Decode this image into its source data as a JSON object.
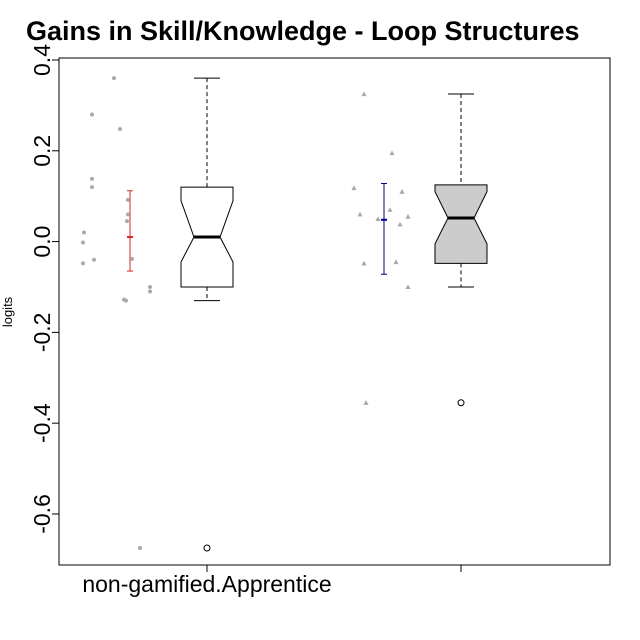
{
  "chart_data": {
    "type": "boxplot",
    "title": "Gains in Skill/Knowledge - Loop Structures",
    "ylabel": "logits",
    "xlabel": "",
    "ylim": [
      -0.72,
      0.4
    ],
    "yticks": [
      -0.6,
      -0.4,
      -0.2,
      0.0,
      0.2,
      0.4
    ],
    "ytick_labels": [
      "-0.6",
      "-0.4",
      "-0.2",
      "0.0",
      "0.2",
      "0.4"
    ],
    "categories": [
      "non-gamified.Apprentice",
      ""
    ],
    "grid": false,
    "legend": "none",
    "groups": [
      {
        "label": "non-gamified.Apprentice",
        "box_fill": "#ffffff",
        "notched": true,
        "box": {
          "q1": -0.1,
          "median": 0.01,
          "q3": 0.12,
          "notch_low": -0.045,
          "notch_high": 0.09,
          "whisker_low": -0.13,
          "whisker_high": 0.36
        },
        "outliers": [
          -0.675
        ],
        "mean_ci": {
          "mean": 0.01,
          "low": -0.065,
          "high": 0.112,
          "color": "#d62728"
        },
        "points_marker": "circle",
        "points": [
          {
            "x": -0.16,
            "y": 0.36
          },
          {
            "x": -0.38,
            "y": 0.28
          },
          {
            "x": -0.1,
            "y": 0.248
          },
          {
            "x": -0.38,
            "y": 0.138
          },
          {
            "x": -0.38,
            "y": 0.12
          },
          {
            "x": -0.02,
            "y": 0.092
          },
          {
            "x": -0.02,
            "y": 0.06
          },
          {
            "x": -0.03,
            "y": 0.045
          },
          {
            "x": -0.46,
            "y": 0.02
          },
          {
            "x": -0.47,
            "y": -0.002
          },
          {
            "x": 0.02,
            "y": -0.038
          },
          {
            "x": -0.36,
            "y": -0.04
          },
          {
            "x": -0.47,
            "y": -0.048
          },
          {
            "x": 0.2,
            "y": -0.1
          },
          {
            "x": 0.2,
            "y": -0.11
          },
          {
            "x": -0.06,
            "y": -0.128
          },
          {
            "x": -0.04,
            "y": -0.13
          },
          {
            "x": 0.1,
            "y": -0.675
          }
        ]
      },
      {
        "label": "",
        "box_fill": "#cccccc",
        "notched": true,
        "box": {
          "q1": -0.048,
          "median": 0.052,
          "q3": 0.125,
          "notch_low": -0.005,
          "notch_high": 0.11,
          "whisker_low": -0.1,
          "whisker_high": 0.325
        },
        "outliers": [
          -0.355
        ],
        "mean_ci": {
          "mean": 0.048,
          "low": -0.072,
          "high": 0.128,
          "color": "#00008b"
        },
        "points_marker": "triangle",
        "points": [
          {
            "x": -0.2,
            "y": 0.325
          },
          {
            "x": 0.08,
            "y": 0.195
          },
          {
            "x": -0.3,
            "y": 0.118
          },
          {
            "x": 0.18,
            "y": 0.11
          },
          {
            "x": 0.06,
            "y": 0.07
          },
          {
            "x": -0.24,
            "y": 0.06
          },
          {
            "x": 0.24,
            "y": 0.055
          },
          {
            "x": -0.06,
            "y": 0.05
          },
          {
            "x": 0.16,
            "y": 0.038
          },
          {
            "x": -0.2,
            "y": -0.048
          },
          {
            "x": 0.12,
            "y": -0.045
          },
          {
            "x": 0.24,
            "y": -0.1
          },
          {
            "x": -0.18,
            "y": -0.355
          }
        ]
      }
    ],
    "colors": {
      "points": "#a9a9a9",
      "axis": "#000000"
    }
  }
}
